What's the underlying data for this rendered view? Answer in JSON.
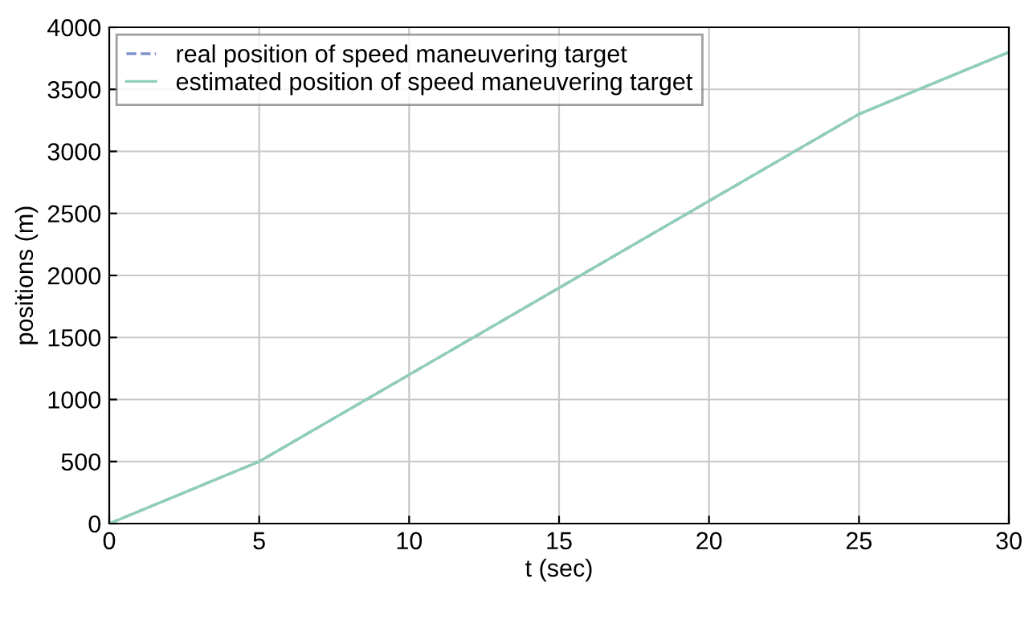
{
  "chart_data": {
    "type": "line",
    "xlabel": "t (sec)",
    "ylabel": "positions (m)",
    "x": [
      0,
      5,
      10,
      15,
      20,
      25,
      30
    ],
    "series": [
      {
        "name": "real position of speed maneuvering target",
        "color": "#7b8fc8",
        "values": [
          0,
          500,
          1200,
          1900,
          2600,
          3300,
          3800
        ],
        "line_style": "dashed"
      },
      {
        "name": "estimated position of speed maneuvering target",
        "color": "#8fcfb8",
        "values": [
          0,
          500,
          1200,
          1900,
          2600,
          3300,
          3800
        ],
        "line_style": "solid"
      }
    ],
    "xlim": [
      0,
      30
    ],
    "ylim": [
      0,
      4000
    ],
    "xticks": [
      0,
      5,
      10,
      15,
      20,
      25,
      30
    ],
    "yticks": [
      0,
      500,
      1000,
      1500,
      2000,
      2500,
      3000,
      3500,
      4000
    ],
    "grid": true,
    "legend": "top left",
    "marker": "none"
  }
}
